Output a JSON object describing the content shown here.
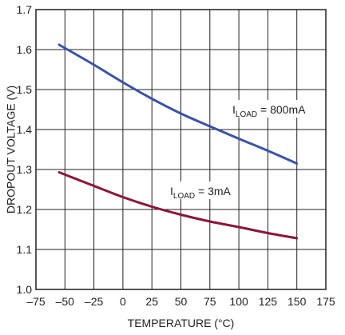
{
  "chart_data": {
    "type": "line",
    "title": "",
    "xlabel": "TEMPERATURE (°C)",
    "ylabel": "DROPOUT VOLTAGE (V)",
    "xlim": [
      -75,
      175
    ],
    "ylim": [
      1.0,
      1.7
    ],
    "x_ticks": [
      -75,
      -50,
      -25,
      0,
      25,
      50,
      75,
      100,
      125,
      150,
      175
    ],
    "x_tick_labels": [
      "–75",
      "–50",
      "–25",
      "0",
      "25",
      "50",
      "75",
      "100",
      "125",
      "150",
      "175"
    ],
    "y_ticks": [
      1.0,
      1.1,
      1.2,
      1.3,
      1.4,
      1.5,
      1.6,
      1.7
    ],
    "y_tick_labels": [
      "1.0",
      "1.1",
      "1.2",
      "1.3",
      "1.4",
      "1.5",
      "1.6",
      "1.7"
    ],
    "grid": true,
    "series": [
      {
        "name": "I_LOAD = 800mA",
        "label_main": "I",
        "label_sub": "LOAD",
        "label_rest": " = 800mA",
        "color": "#3953a4",
        "x": [
          -55,
          -25,
          0,
          25,
          50,
          75,
          100,
          125,
          150
        ],
        "y": [
          1.612,
          1.562,
          1.518,
          1.477,
          1.44,
          1.408,
          1.377,
          1.347,
          1.315
        ]
      },
      {
        "name": "I_LOAD = 3mA",
        "label_main": "I",
        "label_sub": "LOAD",
        "label_rest": " = 3mA",
        "color": "#8b1538",
        "x": [
          -55,
          -25,
          0,
          25,
          50,
          75,
          100,
          125,
          150
        ],
        "y": [
          1.293,
          1.259,
          1.231,
          1.207,
          1.187,
          1.17,
          1.156,
          1.141,
          1.128
        ]
      }
    ]
  }
}
